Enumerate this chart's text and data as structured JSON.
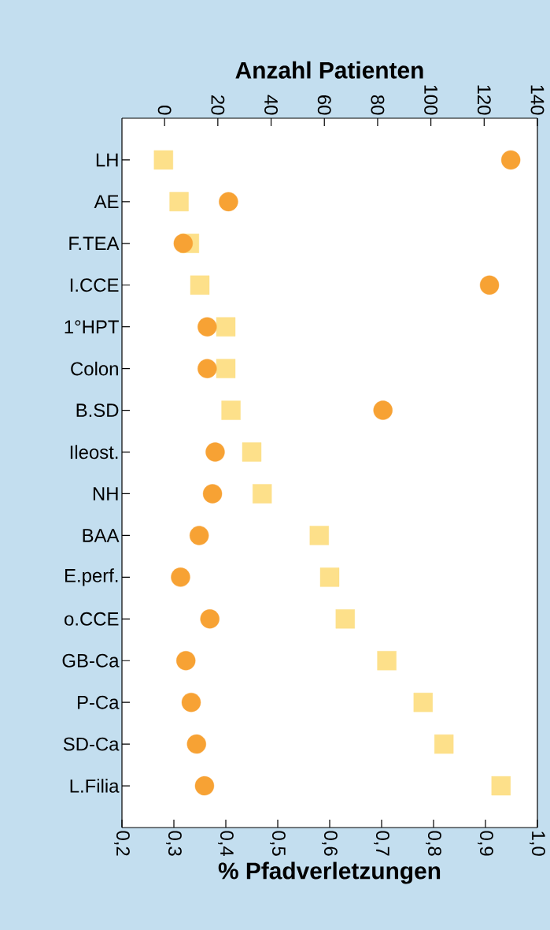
{
  "chart_data": {
    "type": "scatter",
    "orientation": "horizontal",
    "categories": [
      "LH",
      "AE",
      "F.TEA",
      "I.CCE",
      "1°HPT",
      "Colon",
      "B.SD",
      "Ileost.",
      "NH",
      "BAA",
      "E.perf.",
      "o.CCE",
      "GB-Ca",
      "P-Ca",
      "SD-Ca",
      "L.Filia"
    ],
    "series": [
      {
        "color": "#fde08a",
        "marker": "square",
        "values": [
          0.28,
          0.31,
          0.33,
          0.35,
          0.4,
          0.4,
          0.41,
          0.45,
          0.47,
          0.58,
          0.6,
          0.63,
          0.71,
          0.78,
          0.82,
          0.93
        ]
      },
      {
        "color": "#f7a234",
        "marker": "circle",
        "axis": "x2",
        "values": [
          130,
          24,
          7,
          122,
          16,
          16,
          82,
          19,
          18,
          13,
          6,
          17,
          8,
          10,
          12,
          15
        ]
      }
    ],
    "xlabel": "% Pfadverletzungen",
    "x2label": "Anzahl Patienten",
    "xlim": [
      0.2,
      1.0
    ],
    "xticks": [
      {
        "value": 0.2,
        "label": "0,2"
      },
      {
        "value": 0.3,
        "label": "0,3"
      },
      {
        "value": 0.4,
        "label": "0,4"
      },
      {
        "value": 0.5,
        "label": "0,5"
      },
      {
        "value": 0.6,
        "label": "0,6"
      },
      {
        "value": 0.7,
        "label": "0,7"
      },
      {
        "value": 0.8,
        "label": "0,8"
      },
      {
        "value": 0.9,
        "label": "0,9"
      },
      {
        "value": 1.0,
        "label": "1,0"
      }
    ],
    "x2lim": [
      -16,
      140
    ],
    "x2ticks": [
      0,
      20,
      40,
      60,
      80,
      100,
      120,
      140
    ]
  }
}
